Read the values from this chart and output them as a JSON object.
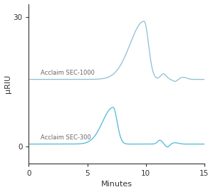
{
  "xlabel": "Minutes",
  "ylabel": "μRIU",
  "xlim": [
    0,
    15
  ],
  "ylim": [
    -4,
    33
  ],
  "yticks": [
    0,
    30
  ],
  "xticks": [
    0,
    5,
    10,
    15
  ],
  "line_color_sec1000": "#8bbfd4",
  "line_color_sec300": "#4db8d8",
  "label_sec1000": "Acclaim SEC-1000",
  "label_sec300": "Acclaim SEC-300",
  "background_color": "#ffffff",
  "sec1000_baseline": 15.5,
  "sec300_baseline": 0.5
}
